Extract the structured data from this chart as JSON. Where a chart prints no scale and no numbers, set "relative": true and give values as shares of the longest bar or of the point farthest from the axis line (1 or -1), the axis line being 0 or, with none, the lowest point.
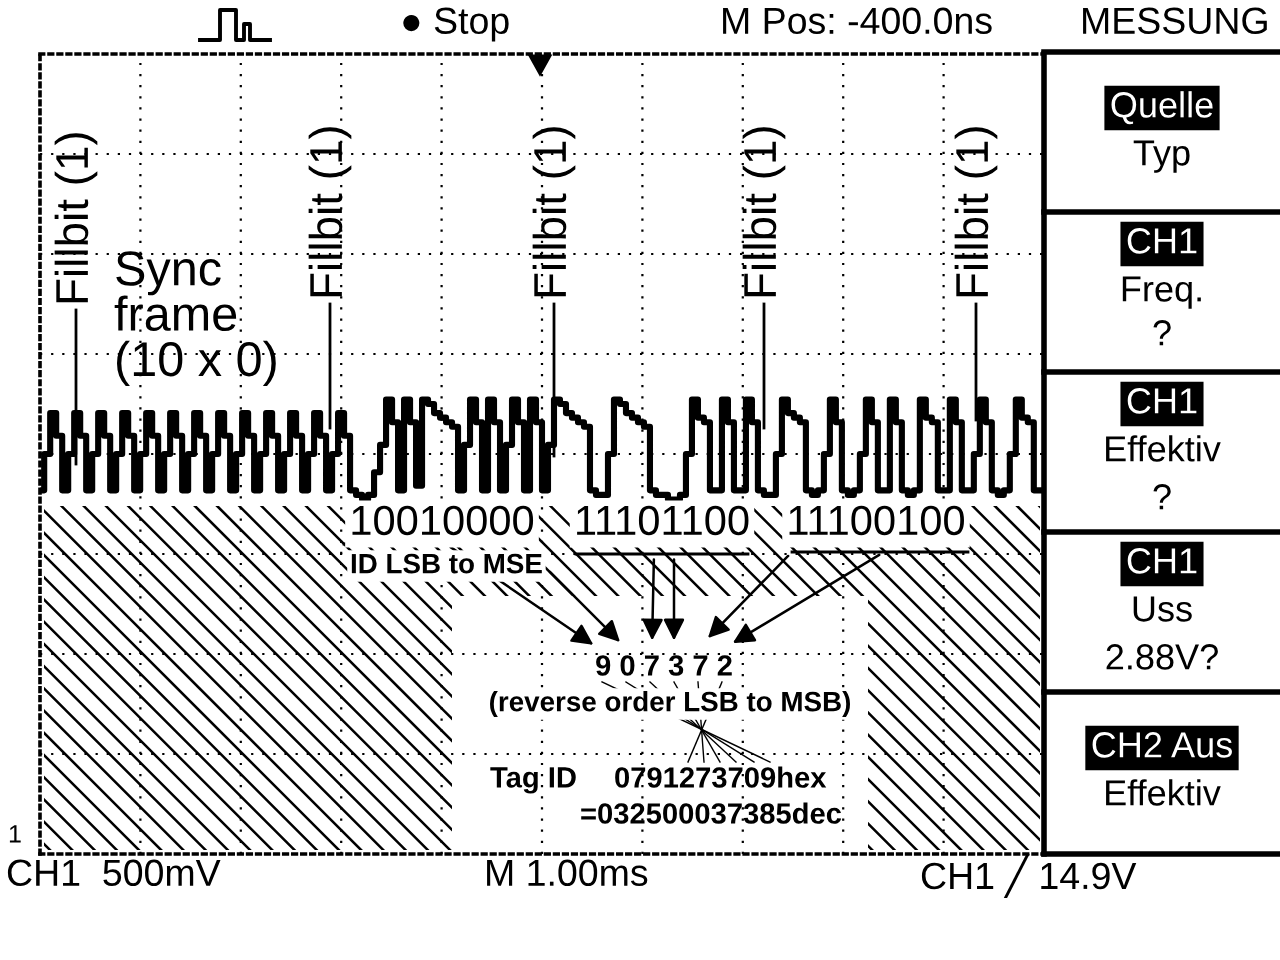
{
  "chart_data": {
    "type": "step",
    "relative": true,
    "color": "#000000",
    "line_style": "solid",
    "grid": true,
    "categories": [
      null,
      null,
      null,
      null,
      null,
      null,
      null,
      null,
      null,
      null,
      null,
      null,
      null,
      null,
      null,
      null,
      null,
      null,
      null,
      null,
      null,
      null,
      null,
      null,
      null,
      null,
      null,
      null,
      null,
      null,
      null,
      null,
      null,
      null,
      null,
      null,
      null,
      null,
      null,
      null,
      null,
      null,
      null,
      null,
      null,
      null,
      null,
      null,
      null,
      null,
      null,
      null,
      null,
      null,
      null,
      null,
      null,
      null,
      null,
      null,
      null,
      null,
      null,
      null,
      null,
      null,
      null,
      null,
      null,
      null,
      null,
      null,
      null,
      null,
      null,
      null,
      null,
      null,
      null,
      null,
      null,
      null,
      null,
      null,
      null,
      null,
      null,
      null,
      null,
      null,
      null,
      null,
      null,
      null,
      null,
      null,
      null,
      null,
      null,
      null,
      null,
      null,
      null,
      null,
      null,
      null,
      null,
      null,
      null,
      null,
      null,
      null,
      null,
      null,
      null,
      null,
      null,
      null,
      null,
      null,
      null,
      null,
      null,
      null,
      null,
      null,
      null,
      null,
      null,
      null,
      null,
      null,
      null,
      null,
      null,
      null,
      null,
      null,
      null,
      null,
      null,
      null,
      null,
      null,
      null,
      null,
      null,
      null,
      null,
      null,
      null,
      null,
      null,
      null,
      null,
      null,
      null,
      null,
      null,
      null,
      null,
      null,
      null,
      null,
      null,
      null,
      null,
      null
    ],
    "values": [
      0.8,
      0.88,
      0.97,
      0.92,
      0.8,
      0.88,
      0.97,
      0.92,
      0.8,
      0.88,
      0.97,
      0.92,
      0.8,
      0.88,
      0.97,
      0.92,
      0.8,
      0.88,
      0.97,
      0.92,
      0.8,
      0.88,
      0.97,
      0.92,
      0.8,
      0.88,
      0.97,
      0.92,
      0.8,
      0.88,
      0.97,
      0.92,
      0.8,
      0.88,
      0.97,
      0.92,
      0.8,
      0.88,
      0.97,
      0.92,
      0.8,
      0.88,
      0.97,
      0.92,
      0.8,
      0.88,
      0.97,
      0.92,
      0.8,
      0.88,
      0.97,
      0.92,
      0.8,
      0.79,
      0.78,
      0.79,
      0.84,
      0.9,
      1,
      0.95,
      0.8,
      1,
      0.95,
      0.81,
      1,
      0.99,
      0.97,
      0.96,
      0.95,
      0.94,
      0.8,
      0.9,
      1,
      0.95,
      0.8,
      1,
      0.95,
      0.8,
      0.9,
      1,
      0.95,
      0.8,
      1,
      0.95,
      0.8,
      0.9,
      1,
      0.99,
      0.97,
      0.96,
      0.95,
      0.94,
      0.8,
      0.79,
      0.79,
      0.88,
      1,
      0.99,
      0.97,
      0.96,
      0.95,
      0.94,
      0.8,
      0.79,
      0.79,
      0.78,
      0.78,
      0.79,
      0.88,
      1,
      0.96,
      0.95,
      0.8,
      0.8,
      1,
      0.95,
      0.8,
      0.8,
      1,
      0.95,
      0.8,
      0.79,
      0.79,
      0.88,
      1,
      0.97,
      0.96,
      0.95,
      0.8,
      0.79,
      0.8,
      0.88,
      1,
      0.95,
      0.8,
      0.79,
      0.8,
      0.88,
      1,
      0.95,
      0.8,
      0.8,
      1,
      0.95,
      0.8,
      0.79,
      0.8,
      1,
      0.96,
      0.95,
      0.8,
      0.8,
      1,
      0.95,
      0.8,
      0.8,
      0.88,
      1,
      0.95,
      0.8,
      0.79,
      0.8,
      0.88,
      1,
      0.96,
      0.95,
      0.8,
      0.8
    ],
    "annotations": [
      "Fillbit (1)",
      "Fillbit (1)",
      "Fillbit (1)",
      "Fillbit (1)",
      "Fillbit (1)",
      "Sync\nframe\n(10 x 0)",
      "10010000",
      "11101100",
      "11100100",
      "ID LSB to MSE",
      "9 0 7 3 7 2",
      "(reverse order LSB to MSB)",
      "Tag ID",
      "0791273709hex",
      "=032500037385dec",
      "● Stop",
      "M Pos: -400.0ns",
      "MESSUNG",
      "Quelle",
      "Typ",
      "CH1",
      "Freq.",
      "?",
      "CH1",
      "Effektiv",
      "?",
      "CH1",
      "Uss",
      "2.88V?",
      "CH2 Aus",
      "Effektiv",
      "CH1  500mV",
      "M 1.00ms",
      "CH1 ╱ 14.9V",
      "1"
    ]
  }
}
